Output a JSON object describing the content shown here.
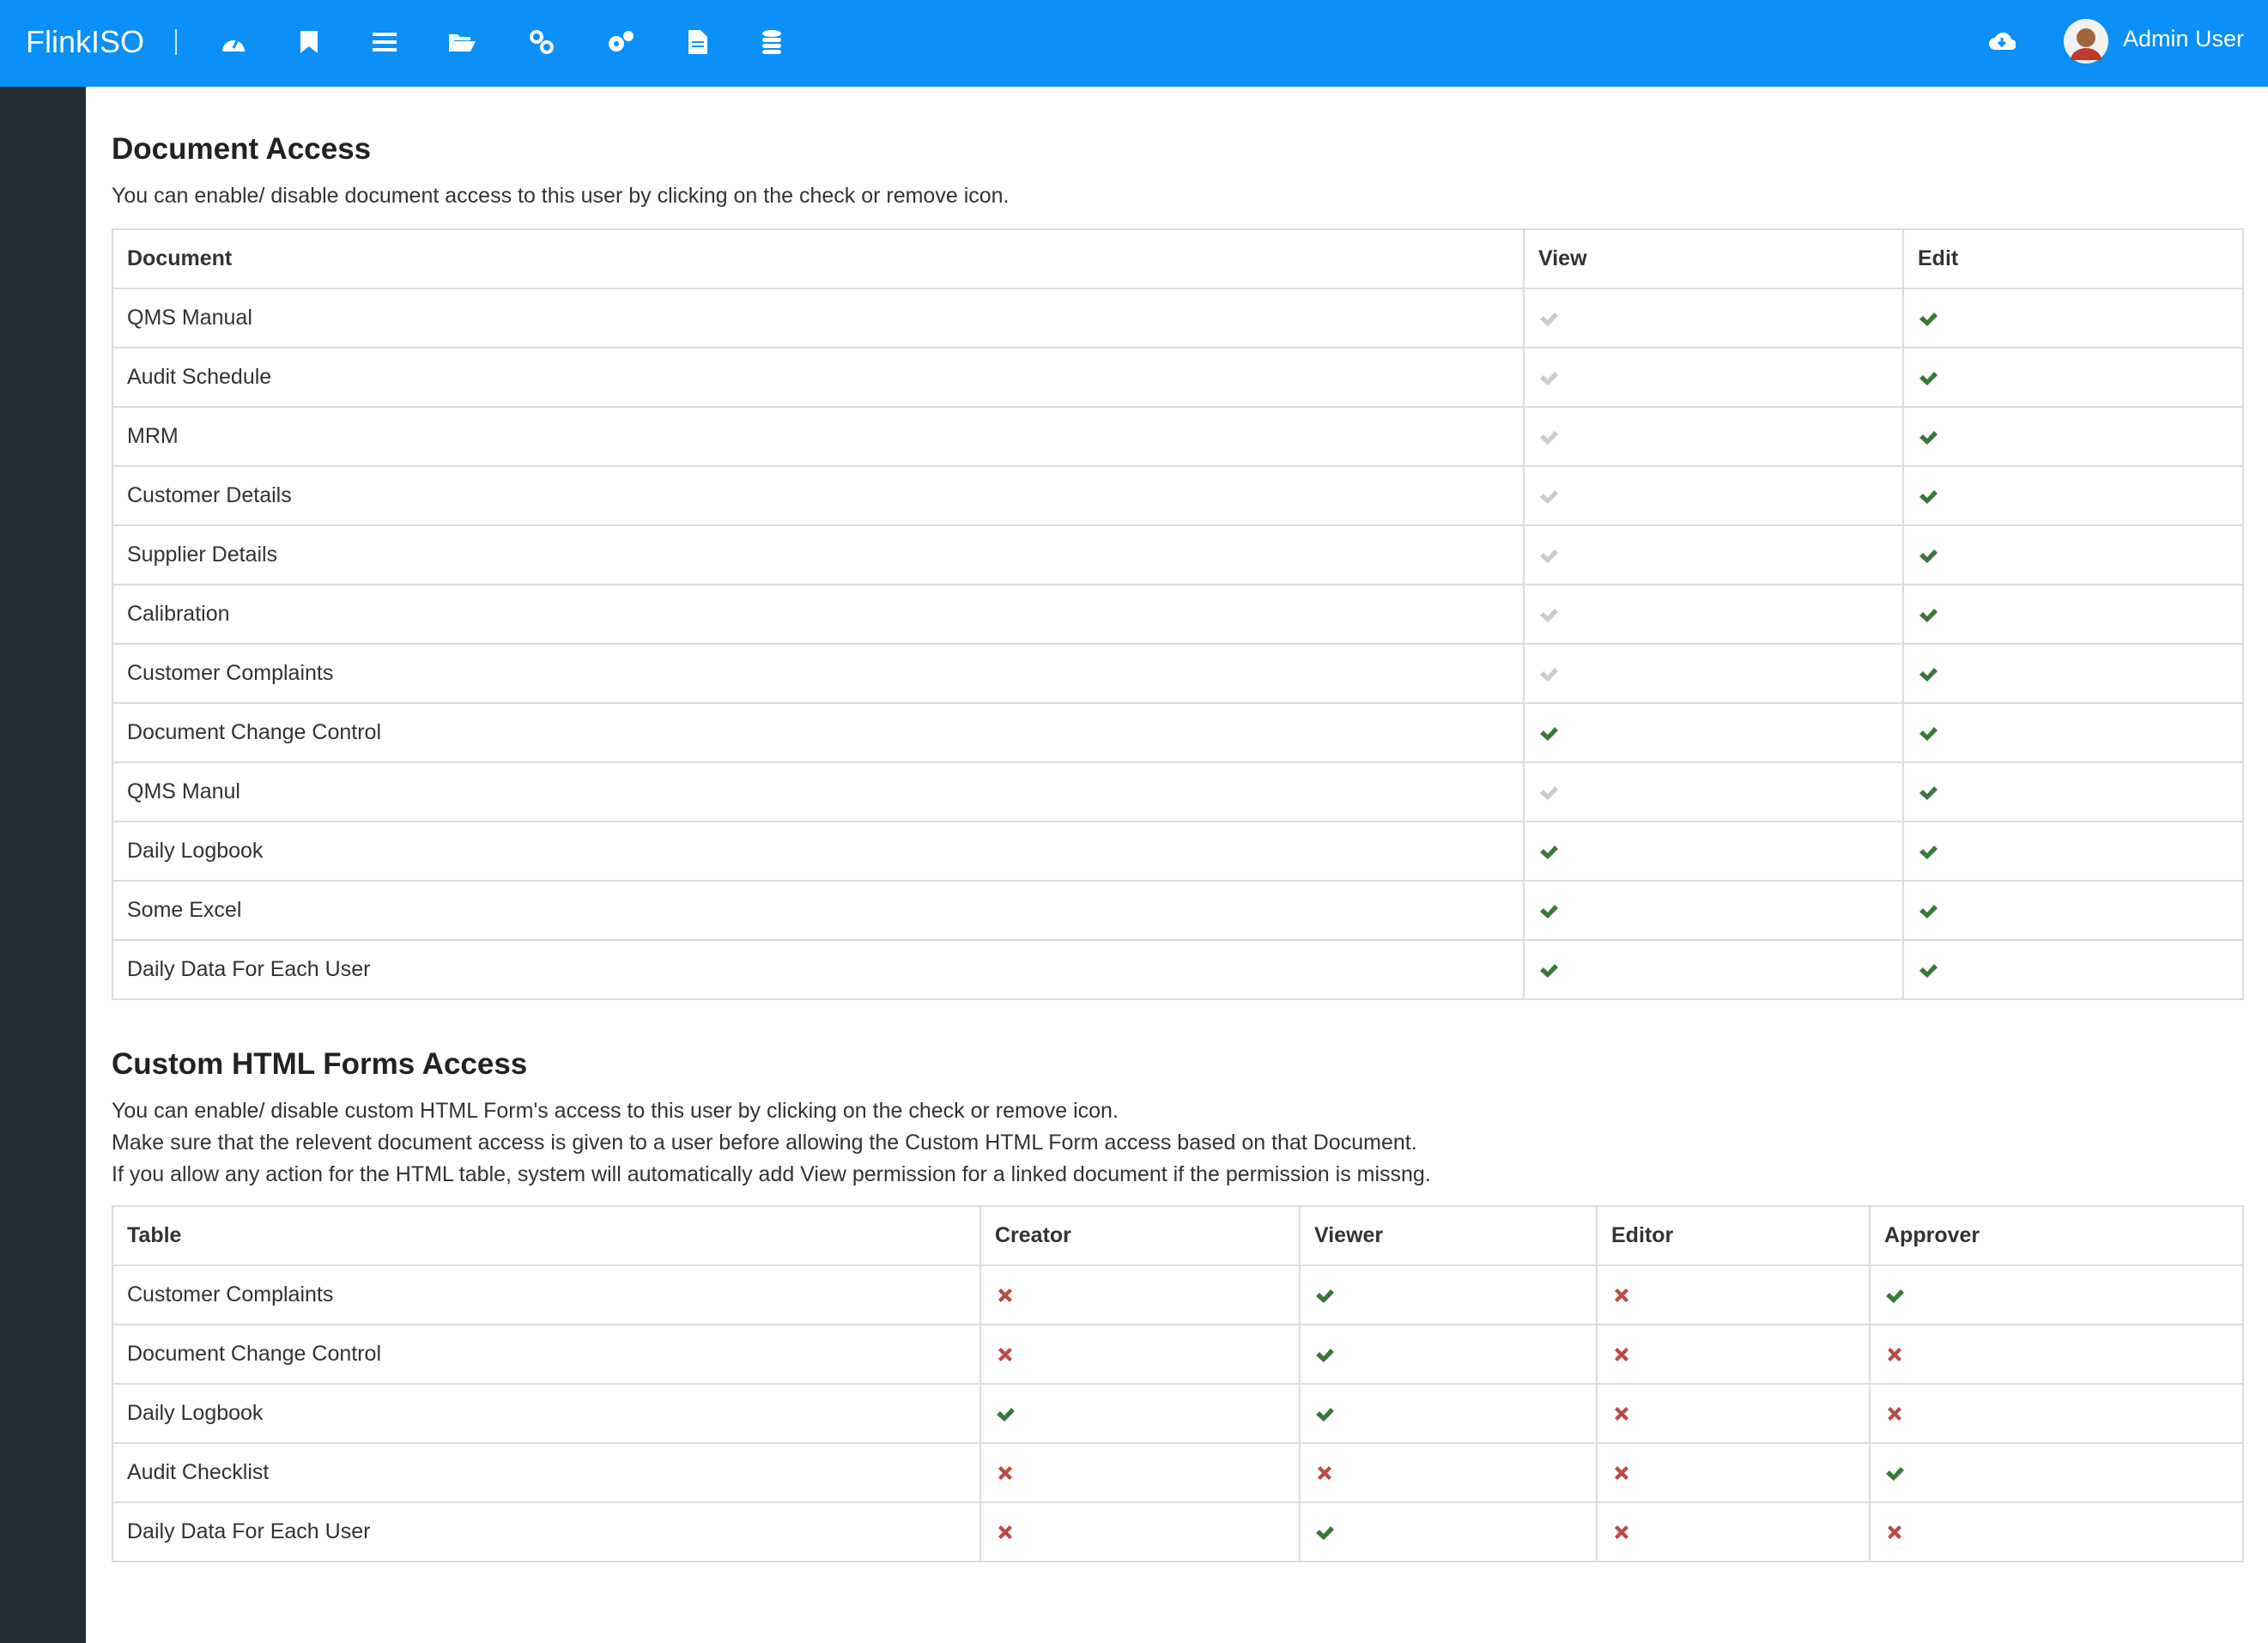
{
  "navbar": {
    "brand": "FlinkISO",
    "user": "Admin User"
  },
  "document_access": {
    "title": "Document Access",
    "description": "You can enable/ disable document access to this user by clicking on the check or remove icon.",
    "columns": [
      "Document",
      "View",
      "Edit"
    ],
    "rows": [
      [
        "QMS Manual",
        false,
        true
      ],
      [
        "Audit Schedule",
        false,
        true
      ],
      [
        "MRM",
        false,
        true
      ],
      [
        "Customer Details",
        false,
        true
      ],
      [
        "Supplier Details",
        false,
        true
      ],
      [
        "Calibration",
        false,
        true
      ],
      [
        "Customer Complaints",
        false,
        true
      ],
      [
        "Document Change Control",
        true,
        true
      ],
      [
        "QMS Manul",
        false,
        true
      ],
      [
        "Daily Logbook",
        true,
        true
      ],
      [
        "Some Excel",
        true,
        true
      ],
      [
        "Daily Data For Each User",
        true,
        true
      ]
    ]
  },
  "forms_access": {
    "title": "Custom HTML Forms Access",
    "description": [
      "You can enable/ disable custom HTML Form's access to this user by clicking on the check or remove icon.",
      "Make sure that the relevent document access is given to a user before allowing the Custom HTML Form access based on that Document.",
      "If you allow any action for the HTML table, system will automatically add View permission for a linked document if the permission is missng."
    ],
    "columns": [
      "Table",
      "Creator",
      "Viewer",
      "Editor",
      "Approver"
    ],
    "rows": [
      [
        "Customer Complaints",
        false,
        true,
        false,
        true
      ],
      [
        "Document Change Control",
        false,
        true,
        false,
        false
      ],
      [
        "Daily Logbook",
        true,
        true,
        false,
        false
      ],
      [
        "Audit Checklist",
        false,
        false,
        false,
        true
      ],
      [
        "Daily Data For Each User",
        false,
        true,
        false,
        false
      ]
    ]
  }
}
